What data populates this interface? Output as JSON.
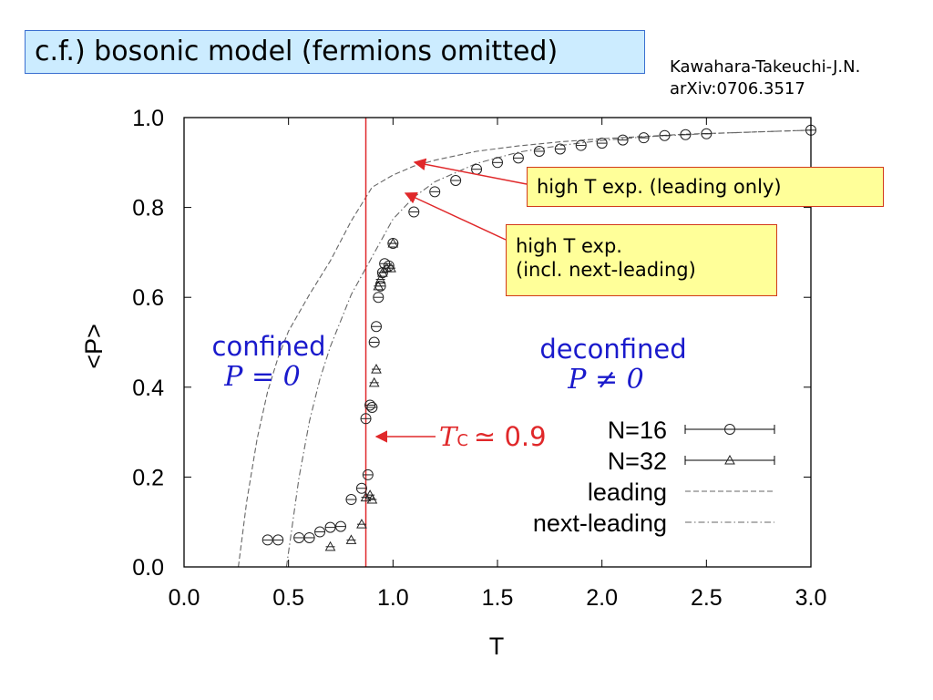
{
  "title": "c.f.) bosonic model (fermions omitted)",
  "citation": {
    "line1": "Kawahara-Takeuchi-J.N.",
    "line2": "arXiv:0706.3517"
  },
  "callouts": {
    "leading": "high T exp. (leading only)",
    "next_line1": "high T exp.",
    "next_line2": "(incl. next-leading)"
  },
  "colors": {
    "annotation_red": "#e0282a",
    "region_blue": "#1a1acc",
    "callout_bg": "#ffff99",
    "title_bg": "#ccecff"
  },
  "chart_data": {
    "type": "scatter",
    "xlabel": "T",
    "ylabel": "<P>",
    "xlim": [
      0.0,
      3.0
    ],
    "ylim": [
      0.0,
      1.0
    ],
    "x_ticks": [
      "0.0",
      "0.5",
      "1.0",
      "1.5",
      "2.0",
      "2.5",
      "3.0"
    ],
    "y_ticks": [
      "0.0",
      "0.2",
      "0.4",
      "0.6",
      "0.8",
      "1.0"
    ],
    "legend_position": "bottom-right",
    "series": [
      {
        "name": "N=16",
        "marker": "circle",
        "error_bars": true,
        "x": [
          0.4,
          0.45,
          0.55,
          0.6,
          0.65,
          0.7,
          0.75,
          0.8,
          0.85,
          0.87,
          0.88,
          0.89,
          0.9,
          0.91,
          0.92,
          0.93,
          0.94,
          0.95,
          0.96,
          0.98,
          1.0,
          1.1,
          1.2,
          1.3,
          1.4,
          1.5,
          1.6,
          1.7,
          1.8,
          1.9,
          2.0,
          2.1,
          2.2,
          2.3,
          2.4,
          2.5,
          3.0
        ],
        "y": [
          0.06,
          0.06,
          0.065,
          0.065,
          0.078,
          0.088,
          0.09,
          0.15,
          0.175,
          0.33,
          0.205,
          0.36,
          0.355,
          0.5,
          0.535,
          0.6,
          0.625,
          0.655,
          0.675,
          0.67,
          0.72,
          0.79,
          0.835,
          0.86,
          0.885,
          0.9,
          0.91,
          0.925,
          0.93,
          0.938,
          0.943,
          0.95,
          0.955,
          0.96,
          0.962,
          0.964,
          0.972
        ]
      },
      {
        "name": "N=32",
        "marker": "triangle",
        "error_bars": true,
        "x": [
          0.7,
          0.8,
          0.85,
          0.87,
          0.89,
          0.9,
          0.91,
          0.92,
          0.93,
          0.94,
          0.95,
          0.97,
          0.99,
          1.0
        ],
        "y": [
          0.045,
          0.06,
          0.095,
          0.155,
          0.16,
          0.15,
          0.41,
          0.44,
          0.625,
          0.64,
          0.655,
          0.665,
          0.665,
          0.72
        ]
      },
      {
        "name": "leading",
        "style": "dashed",
        "x": [
          0.26,
          0.3,
          0.35,
          0.4,
          0.45,
          0.5,
          0.6,
          0.7,
          0.8,
          0.9,
          1.0,
          1.1,
          1.2,
          1.4,
          1.6,
          1.8,
          2.0,
          2.2,
          2.4,
          2.6,
          2.8,
          3.0
        ],
        "y": [
          0.0,
          0.146,
          0.286,
          0.39,
          0.466,
          0.525,
          0.606,
          0.681,
          0.77,
          0.845,
          0.872,
          0.892,
          0.905,
          0.925,
          0.937,
          0.946,
          0.953,
          0.958,
          0.963,
          0.966,
          0.969,
          0.972
        ]
      },
      {
        "name": "next-leading",
        "style": "dash-dot",
        "x": [
          0.49,
          0.55,
          0.6,
          0.65,
          0.7,
          0.8,
          0.9,
          1.0,
          1.1,
          1.2,
          1.4,
          1.6,
          1.8,
          2.0,
          2.2,
          2.4,
          2.6,
          2.8,
          3.0
        ],
        "y": [
          0.0,
          0.198,
          0.324,
          0.418,
          0.49,
          0.606,
          0.69,
          0.774,
          0.823,
          0.857,
          0.898,
          0.923,
          0.938,
          0.949,
          0.957,
          0.962,
          0.966,
          0.969,
          0.972
        ]
      }
    ],
    "vertical_marker": {
      "x": 0.87
    },
    "annotations": {
      "tc_math": "T",
      "tc_sub": "C",
      "tc_rel": "≃ 0.9",
      "confined_word": "confined",
      "confined_math": "P = 0",
      "deconfined_word": "deconfined",
      "deconfined_math": "P ≠ 0"
    }
  }
}
